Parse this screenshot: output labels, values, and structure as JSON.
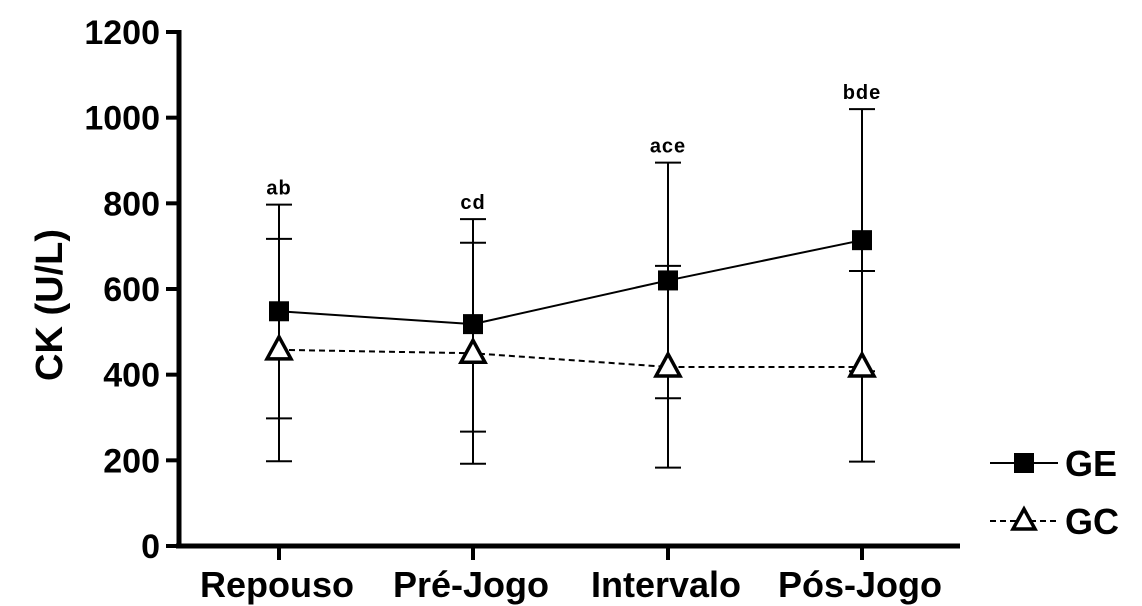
{
  "chart_data": {
    "type": "line",
    "ylabel": "CK (U/L)",
    "xlabel": "",
    "ylim": [
      0,
      1200
    ],
    "yticks": [
      0,
      200,
      400,
      600,
      800,
      1000,
      1200
    ],
    "categories": [
      "Repouso",
      "Pré-Jogo",
      "Intervalo",
      "Pós-Jogo"
    ],
    "series": [
      {
        "name": "GE",
        "marker": "filled-square",
        "line_style": "solid",
        "values": [
          548,
          518,
          620,
          714
        ],
        "error_upper": [
          797,
          763,
          895,
          1020
        ],
        "error_lower": [
          298,
          267,
          345,
          408
        ]
      },
      {
        "name": "GC",
        "marker": "open-triangle",
        "line_style": "dashed",
        "values": [
          458,
          450,
          418,
          418
        ],
        "error_upper": [
          717,
          708,
          654,
          642
        ],
        "error_lower": [
          198,
          192,
          183,
          197
        ]
      }
    ],
    "annotations": [
      "ab",
      "cd",
      "ace",
      "bde"
    ],
    "legend_position": "bottom-right",
    "grid": false
  }
}
